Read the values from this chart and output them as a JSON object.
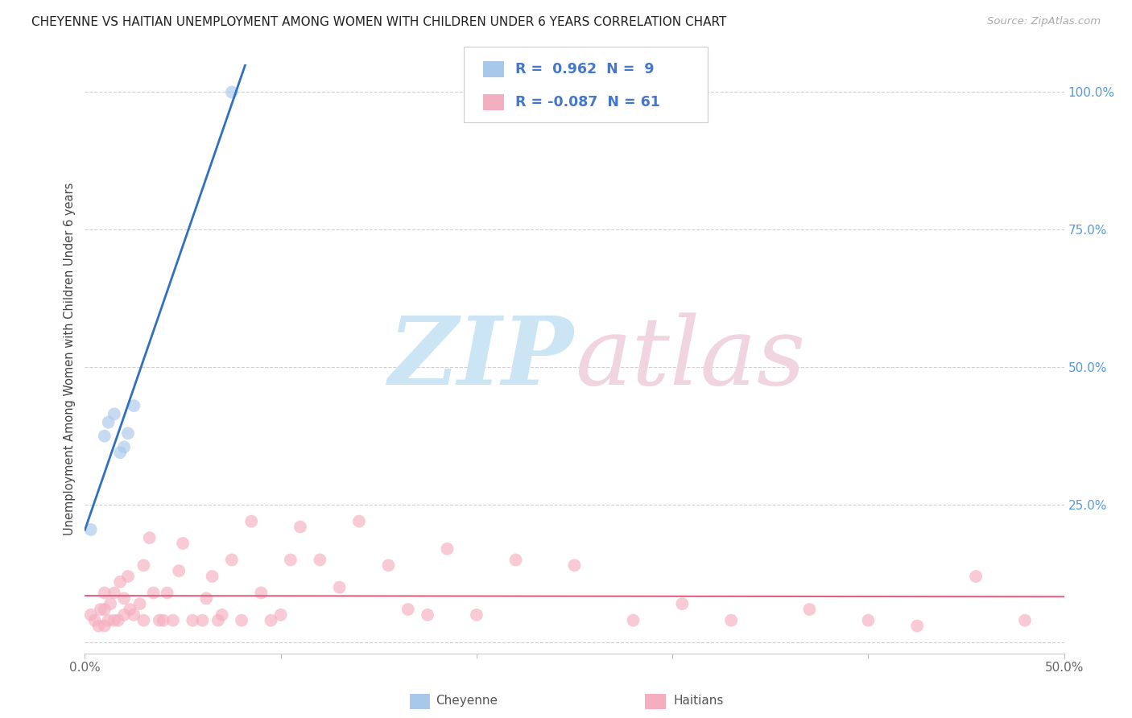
{
  "title": "CHEYENNE VS HAITIAN UNEMPLOYMENT AMONG WOMEN WITH CHILDREN UNDER 6 YEARS CORRELATION CHART",
  "source": "Source: ZipAtlas.com",
  "ylabel": "Unemployment Among Women with Children Under 6 years",
  "xlim": [
    0.0,
    0.5
  ],
  "ylim": [
    -0.02,
    1.05
  ],
  "xticks": [
    0.0,
    0.1,
    0.2,
    0.3,
    0.4,
    0.5
  ],
  "xtick_labels": [
    "0.0%",
    "",
    "",
    "",
    "",
    "50.0%"
  ],
  "yticks_right": [
    0.0,
    0.25,
    0.5,
    0.75,
    1.0
  ],
  "ytick_labels_right": [
    "",
    "25.0%",
    "50.0%",
    "75.0%",
    "100.0%"
  ],
  "cheyenne_color": "#a8c8ea",
  "haitian_color": "#f5aec0",
  "cheyenne_line_color": "#3070c0",
  "haitian_line_color": "#e06080",
  "cheyenne_R": 0.962,
  "cheyenne_N": 9,
  "haitian_R": -0.087,
  "haitian_N": 61,
  "watermark_zip_color": "#cce5f5",
  "watermark_atlas_color": "#f0d5e0",
  "background_color": "#ffffff",
  "grid_color": "#d0d0d0",
  "cheyenne_x": [
    0.003,
    0.01,
    0.012,
    0.015,
    0.018,
    0.02,
    0.022,
    0.025,
    0.075
  ],
  "cheyenne_y": [
    0.205,
    0.375,
    0.4,
    0.415,
    0.345,
    0.355,
    0.38,
    0.43,
    1.0
  ],
  "haitian_x": [
    0.003,
    0.005,
    0.007,
    0.008,
    0.01,
    0.01,
    0.01,
    0.012,
    0.013,
    0.015,
    0.015,
    0.017,
    0.018,
    0.02,
    0.02,
    0.022,
    0.023,
    0.025,
    0.028,
    0.03,
    0.03,
    0.033,
    0.035,
    0.038,
    0.04,
    0.042,
    0.045,
    0.048,
    0.05,
    0.055,
    0.06,
    0.062,
    0.065,
    0.068,
    0.07,
    0.075,
    0.08,
    0.085,
    0.09,
    0.095,
    0.1,
    0.105,
    0.11,
    0.12,
    0.13,
    0.14,
    0.155,
    0.165,
    0.175,
    0.185,
    0.2,
    0.22,
    0.25,
    0.28,
    0.305,
    0.33,
    0.37,
    0.4,
    0.425,
    0.455,
    0.48
  ],
  "haitian_y": [
    0.05,
    0.04,
    0.03,
    0.06,
    0.03,
    0.06,
    0.09,
    0.04,
    0.07,
    0.04,
    0.09,
    0.04,
    0.11,
    0.05,
    0.08,
    0.12,
    0.06,
    0.05,
    0.07,
    0.04,
    0.14,
    0.19,
    0.09,
    0.04,
    0.04,
    0.09,
    0.04,
    0.13,
    0.18,
    0.04,
    0.04,
    0.08,
    0.12,
    0.04,
    0.05,
    0.15,
    0.04,
    0.22,
    0.09,
    0.04,
    0.05,
    0.15,
    0.21,
    0.15,
    0.1,
    0.22,
    0.14,
    0.06,
    0.05,
    0.17,
    0.05,
    0.15,
    0.14,
    0.04,
    0.07,
    0.04,
    0.06,
    0.04,
    0.03,
    0.12,
    0.04
  ]
}
